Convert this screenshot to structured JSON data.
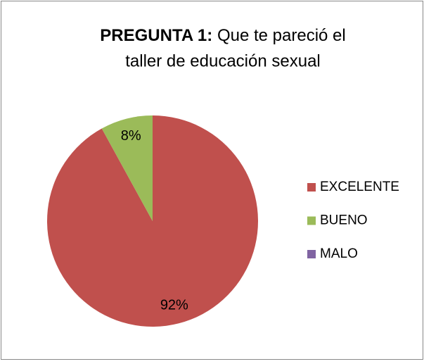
{
  "chart_data": {
    "type": "pie",
    "title_bold": "PREGUNTA 1:",
    "title_lines": [
      "Que te pareció el",
      "taller de educación sexual"
    ],
    "categories": [
      "EXCELENTE",
      "BUENO",
      "MALO"
    ],
    "values": [
      92,
      8,
      0
    ],
    "value_labels": [
      "92%",
      "8%",
      null
    ],
    "colors": [
      "#c0504d",
      "#9bbb59",
      "#8064a2"
    ],
    "legend": "right"
  }
}
